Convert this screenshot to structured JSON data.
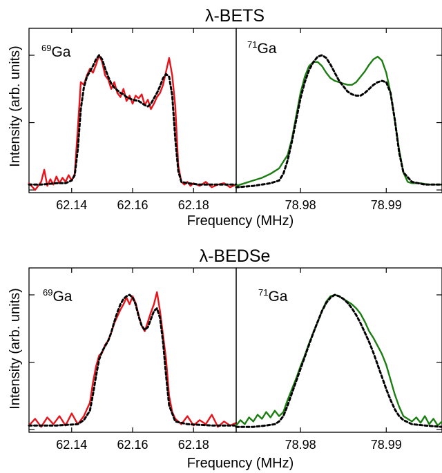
{
  "chart_data": [
    {
      "type": "line",
      "title": "λ-BETS",
      "ylabel": "Intensity (arb. units)",
      "xlabel": "Frequency (MHz)",
      "panels": [
        {
          "label_sup": "69",
          "label_main": "Ga",
          "xlim": [
            62.126,
            62.194
          ],
          "ylim": [
            -0.02,
            1.2
          ],
          "xticks": [
            62.14,
            62.16,
            62.18
          ],
          "xtick_labels": [
            "62.14",
            "62.16",
            "62.18"
          ],
          "series": [
            {
              "style": "solid",
              "color": "#e8141c",
              "x": [
                62.126,
                62.128,
                62.13,
                62.131,
                62.132,
                62.133,
                62.134,
                62.135,
                62.136,
                62.137,
                62.138,
                62.139,
                62.14,
                62.141,
                62.142,
                62.143,
                62.144,
                62.145,
                62.146,
                62.147,
                62.148,
                62.149,
                62.15,
                62.151,
                62.152,
                62.153,
                62.154,
                62.155,
                62.156,
                62.157,
                62.158,
                62.159,
                62.16,
                62.161,
                62.162,
                62.163,
                62.164,
                62.165,
                62.166,
                62.167,
                62.168,
                62.169,
                62.17,
                62.171,
                62.172,
                62.173,
                62.174,
                62.175,
                62.176,
                62.177,
                62.178,
                62.179,
                62.18,
                62.182,
                62.184,
                62.186,
                62.188,
                62.19,
                62.192,
                62.194
              ],
              "y": [
                0.05,
                0.0,
                0.06,
                0.15,
                0.03,
                0.08,
                0.04,
                0.1,
                0.05,
                0.09,
                0.06,
                0.11,
                0.07,
                0.12,
                0.45,
                0.8,
                0.78,
                0.85,
                0.9,
                0.87,
                0.93,
                1.0,
                0.95,
                0.85,
                0.82,
                0.75,
                0.8,
                0.72,
                0.69,
                0.75,
                0.66,
                0.7,
                0.64,
                0.7,
                0.68,
                0.71,
                0.63,
                0.67,
                0.6,
                0.64,
                0.69,
                0.72,
                0.78,
                0.88,
                0.98,
                0.85,
                0.62,
                0.18,
                0.06,
                0.04,
                0.06,
                0.03,
                0.05,
                0.03,
                0.06,
                0.02,
                0.04,
                0.05,
                0.02,
                0.04
              ]
            },
            {
              "style": "dashed",
              "color": "#000000",
              "x": [
                62.126,
                62.13,
                62.135,
                62.138,
                62.14,
                62.141,
                62.142,
                62.143,
                62.144,
                62.145,
                62.146,
                62.147,
                62.148,
                62.149,
                62.15,
                62.151,
                62.152,
                62.153,
                62.154,
                62.155,
                62.156,
                62.157,
                62.158,
                62.16,
                62.162,
                62.164,
                62.165,
                62.166,
                62.167,
                62.168,
                62.169,
                62.17,
                62.171,
                62.172,
                62.173,
                62.174,
                62.175,
                62.176,
                62.178,
                62.182,
                62.186,
                62.19,
                62.194
              ],
              "y": [
                0.04,
                0.04,
                0.05,
                0.05,
                0.07,
                0.11,
                0.3,
                0.6,
                0.76,
                0.84,
                0.88,
                0.92,
                0.97,
                1.0,
                0.97,
                0.9,
                0.84,
                0.79,
                0.76,
                0.74,
                0.72,
                0.71,
                0.69,
                0.67,
                0.66,
                0.63,
                0.62,
                0.64,
                0.68,
                0.72,
                0.77,
                0.83,
                0.86,
                0.84,
                0.7,
                0.38,
                0.14,
                0.06,
                0.05,
                0.04,
                0.04,
                0.04,
                0.04
              ]
            }
          ]
        },
        {
          "label_sup": "71",
          "label_main": "Ga",
          "xlim": [
            78.9725,
            78.9965
          ],
          "ylim": [
            -0.02,
            1.2
          ],
          "xticks": [
            78.98,
            78.99
          ],
          "xtick_labels": [
            "78.98",
            "78.99"
          ],
          "series": [
            {
              "style": "solid",
              "color": "#1c7d12",
              "x": [
                78.9725,
                78.9735,
                78.9745,
                78.9755,
                78.9765,
                78.9775,
                78.9785,
                78.979,
                78.9795,
                78.98,
                78.9805,
                78.981,
                78.9815,
                78.982,
                78.9825,
                78.983,
                78.9835,
                78.984,
                78.9845,
                78.985,
                78.9855,
                78.986,
                78.9865,
                78.987,
                78.9875,
                78.988,
                78.9885,
                78.989,
                78.9895,
                78.99,
                78.9905,
                78.991,
                78.9915,
                78.992,
                78.9925,
                78.993,
                78.994,
                78.995,
                78.9965
              ],
              "y": [
                0.03,
                0.05,
                0.07,
                0.09,
                0.12,
                0.16,
                0.26,
                0.38,
                0.55,
                0.72,
                0.84,
                0.92,
                0.95,
                0.95,
                0.92,
                0.87,
                0.83,
                0.81,
                0.8,
                0.79,
                0.78,
                0.78,
                0.8,
                0.84,
                0.88,
                0.93,
                0.97,
                0.99,
                0.96,
                0.87,
                0.72,
                0.52,
                0.3,
                0.13,
                0.06,
                0.05,
                0.05,
                0.04,
                0.04
              ]
            },
            {
              "style": "dashed",
              "color": "#000000",
              "x": [
                78.9725,
                78.9745,
                78.9765,
                78.9775,
                78.978,
                78.9785,
                78.979,
                78.9795,
                78.98,
                78.9805,
                78.981,
                78.9815,
                78.982,
                78.9825,
                78.983,
                78.9835,
                78.984,
                78.9845,
                78.985,
                78.9855,
                78.986,
                78.9865,
                78.987,
                78.9875,
                78.988,
                78.9885,
                78.989,
                78.9895,
                78.99,
                78.9905,
                78.991,
                78.9915,
                78.992,
                78.993,
                78.9945,
                78.9965
              ],
              "y": [
                0.02,
                0.03,
                0.05,
                0.07,
                0.12,
                0.22,
                0.36,
                0.52,
                0.68,
                0.8,
                0.89,
                0.95,
                0.99,
                1.0,
                0.98,
                0.93,
                0.87,
                0.81,
                0.77,
                0.73,
                0.71,
                0.7,
                0.7,
                0.72,
                0.75,
                0.78,
                0.8,
                0.81,
                0.8,
                0.72,
                0.52,
                0.28,
                0.13,
                0.06,
                0.04,
                0.04
              ]
            }
          ]
        }
      ]
    },
    {
      "type": "line",
      "title": "λ-BEDSe",
      "ylabel": "Intensity (arb. units)",
      "xlabel": "Frequency (MHz)",
      "panels": [
        {
          "label_sup": "69",
          "label_main": "Ga",
          "xlim": [
            62.126,
            62.194
          ],
          "ylim": [
            -0.02,
            1.2
          ],
          "xticks": [
            62.14,
            62.16,
            62.18
          ],
          "xtick_labels": [
            "62.14",
            "62.16",
            "62.18"
          ],
          "series": [
            {
              "style": "solid",
              "color": "#e8141c",
              "x": [
                62.126,
                62.128,
                62.13,
                62.132,
                62.134,
                62.136,
                62.138,
                62.14,
                62.142,
                62.144,
                62.146,
                62.147,
                62.148,
                62.149,
                62.15,
                62.151,
                62.152,
                62.153,
                62.154,
                62.155,
                62.156,
                62.157,
                62.158,
                62.159,
                62.16,
                62.161,
                62.162,
                62.163,
                62.164,
                62.165,
                62.166,
                62.167,
                62.168,
                62.169,
                62.17,
                62.171,
                62.172,
                62.173,
                62.174,
                62.176,
                62.178,
                62.18,
                62.182,
                62.184,
                62.186,
                62.188,
                62.19,
                62.192,
                62.194
              ],
              "y": [
                0.03,
                0.08,
                0.02,
                0.09,
                0.04,
                0.1,
                0.03,
                0.12,
                0.04,
                0.1,
                0.2,
                0.35,
                0.47,
                0.55,
                0.57,
                0.63,
                0.66,
                0.72,
                0.79,
                0.84,
                0.89,
                0.93,
                0.98,
                0.93,
                0.99,
                0.94,
                0.85,
                0.77,
                0.73,
                0.8,
                0.87,
                0.93,
                1.02,
                0.88,
                0.7,
                0.52,
                0.25,
                0.13,
                0.08,
                0.04,
                0.1,
                0.03,
                0.07,
                0.04,
                0.11,
                0.02,
                0.06,
                0.03,
                0.05
              ]
            },
            {
              "style": "dashed",
              "color": "#000000",
              "x": [
                62.126,
                62.135,
                62.142,
                62.144,
                62.146,
                62.147,
                62.148,
                62.149,
                62.15,
                62.151,
                62.152,
                62.153,
                62.154,
                62.155,
                62.156,
                62.157,
                62.158,
                62.159,
                62.16,
                62.161,
                62.162,
                62.163,
                62.164,
                62.165,
                62.166,
                62.167,
                62.168,
                62.169,
                62.17,
                62.171,
                62.172,
                62.174,
                62.178,
                62.186,
                62.194
              ],
              "y": [
                0.03,
                0.03,
                0.04,
                0.07,
                0.14,
                0.26,
                0.4,
                0.52,
                0.58,
                0.62,
                0.66,
                0.72,
                0.8,
                0.87,
                0.93,
                0.97,
                0.99,
                1.0,
                0.98,
                0.93,
                0.84,
                0.77,
                0.74,
                0.76,
                0.82,
                0.88,
                0.9,
                0.83,
                0.65,
                0.4,
                0.18,
                0.06,
                0.04,
                0.03,
                0.03
              ]
            }
          ]
        },
        {
          "label_sup": "71",
          "label_main": "Ga",
          "xlim": [
            78.9725,
            78.9965
          ],
          "ylim": [
            -0.02,
            1.2
          ],
          "xticks": [
            78.98,
            78.99
          ],
          "xtick_labels": [
            "78.98",
            "78.99"
          ],
          "series": [
            {
              "style": "solid",
              "color": "#1c7d12",
              "x": [
                78.9725,
                78.973,
                78.9735,
                78.974,
                78.9745,
                78.975,
                78.9755,
                78.976,
                78.9765,
                78.977,
                78.9775,
                78.978,
                78.9785,
                78.979,
                78.9795,
                78.98,
                78.9805,
                78.981,
                78.9815,
                78.982,
                78.9825,
                78.983,
                78.9835,
                78.984,
                78.9845,
                78.985,
                78.9855,
                78.986,
                78.9865,
                78.987,
                78.9875,
                78.988,
                78.9885,
                78.989,
                78.9895,
                78.99,
                78.9905,
                78.991,
                78.9915,
                78.992,
                78.9925,
                78.993,
                78.9935,
                78.994,
                78.9945,
                78.995,
                78.9955,
                78.996,
                78.9965
              ],
              "y": [
                0.03,
                0.07,
                0.04,
                0.09,
                0.06,
                0.11,
                0.08,
                0.13,
                0.09,
                0.14,
                0.1,
                0.13,
                0.22,
                0.3,
                0.38,
                0.47,
                0.55,
                0.64,
                0.72,
                0.8,
                0.88,
                0.95,
                0.99,
                1.0,
                0.99,
                0.97,
                0.95,
                0.93,
                0.9,
                0.86,
                0.8,
                0.73,
                0.68,
                0.62,
                0.56,
                0.48,
                0.37,
                0.26,
                0.17,
                0.1,
                0.08,
                0.06,
                0.09,
                0.05,
                0.1,
                0.04,
                0.08,
                0.03,
                0.06
              ]
            },
            {
              "style": "dashed",
              "color": "#000000",
              "x": [
                78.9725,
                78.9745,
                78.976,
                78.977,
                78.9775,
                78.978,
                78.9785,
                78.979,
                78.9795,
                78.98,
                78.9805,
                78.981,
                78.9815,
                78.982,
                78.9825,
                78.983,
                78.9835,
                78.984,
                78.9845,
                78.985,
                78.9855,
                78.986,
                78.9865,
                78.987,
                78.9875,
                78.988,
                78.9885,
                78.989,
                78.9895,
                78.99,
                78.9905,
                78.991,
                78.9915,
                78.992,
                78.993,
                78.9945,
                78.9965
              ],
              "y": [
                0.02,
                0.02,
                0.03,
                0.04,
                0.06,
                0.1,
                0.18,
                0.27,
                0.36,
                0.45,
                0.54,
                0.63,
                0.72,
                0.8,
                0.88,
                0.94,
                0.98,
                1.0,
                0.99,
                0.97,
                0.94,
                0.9,
                0.85,
                0.79,
                0.72,
                0.65,
                0.57,
                0.48,
                0.39,
                0.3,
                0.22,
                0.15,
                0.1,
                0.07,
                0.04,
                0.03,
                0.02
              ]
            }
          ]
        }
      ]
    }
  ]
}
